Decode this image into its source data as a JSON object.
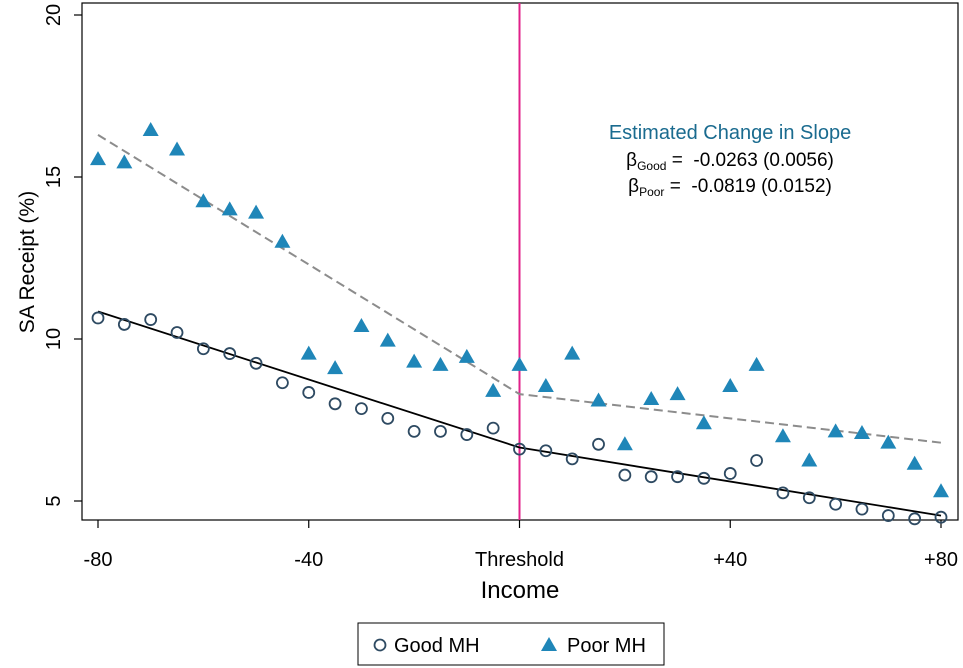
{
  "chart_data": {
    "type": "scatter",
    "title": "",
    "xlabel": "Income",
    "ylabel": "SA Receipt (%)",
    "xlim": [
      -80,
      80
    ],
    "ylim": [
      5,
      20
    ],
    "x_ticks": [
      {
        "value": -80,
        "label": "-80"
      },
      {
        "value": -40,
        "label": "-40"
      },
      {
        "value": 0,
        "label": "Threshold"
      },
      {
        "value": 40,
        "label": "+40"
      },
      {
        "value": 80,
        "label": "+80"
      }
    ],
    "y_ticks": [
      {
        "value": 5,
        "label": "5"
      },
      {
        "value": 10,
        "label": "10"
      },
      {
        "value": 15,
        "label": "15"
      },
      {
        "value": 20,
        "label": "20"
      }
    ],
    "threshold_x": 0,
    "threshold_color": "#e0218a",
    "grid": false,
    "legend_position": "bottom",
    "x": [
      -80,
      -75,
      -70,
      -65,
      -60,
      -55,
      -50,
      -45,
      -40,
      -35,
      -30,
      -25,
      -20,
      -15,
      -10,
      -5,
      0,
      5,
      10,
      15,
      20,
      25,
      30,
      35,
      40,
      45,
      50,
      55,
      60,
      65,
      70,
      75,
      80
    ],
    "series": [
      {
        "name": "Good MH",
        "marker": "hollow-circle",
        "color": "#2e4a62",
        "values": [
          10.65,
          10.45,
          10.6,
          10.2,
          9.7,
          9.55,
          9.25,
          8.65,
          8.35,
          8.0,
          7.85,
          7.55,
          7.15,
          7.15,
          7.05,
          7.25,
          6.6,
          6.55,
          6.3,
          6.75,
          5.8,
          5.75,
          5.75,
          5.7,
          5.85,
          6.25,
          5.25,
          5.1,
          4.9,
          4.75,
          4.55,
          4.45,
          4.5
        ],
        "fit": [
          [
            -80,
            10.85
          ],
          [
            0,
            6.65
          ],
          [
            80,
            4.55
          ]
        ],
        "fit_color": "#000000",
        "fit_dash": "solid"
      },
      {
        "name": "Poor MH",
        "marker": "filled-triangle",
        "color": "#1f86b8",
        "values": [
          15.55,
          15.45,
          16.45,
          15.85,
          14.25,
          14.0,
          13.9,
          13.0,
          9.55,
          9.1,
          10.4,
          9.95,
          9.3,
          9.2,
          9.45,
          8.4,
          9.2,
          8.55,
          9.55,
          8.1,
          6.75,
          8.15,
          8.3,
          7.4,
          8.55,
          9.2,
          7.0,
          6.25,
          7.15,
          7.1,
          6.8,
          6.15,
          5.3
        ],
        "fit": [
          [
            -80,
            16.3
          ],
          [
            0,
            8.3
          ],
          [
            80,
            6.8
          ]
        ],
        "fit_color": "#8c8c8c",
        "fit_dash": "dashed"
      }
    ],
    "annotation": {
      "heading": "Estimated Change in Slope",
      "heading_color": "#1a6b8f",
      "line1_symbol": "β",
      "line1_sub": "Good",
      "line1_text": " =  -0.0263 (0.0056)",
      "line2_symbol": "β",
      "line2_sub": "Poor",
      "line2_text": " =  -0.0819 (0.0152)"
    }
  }
}
